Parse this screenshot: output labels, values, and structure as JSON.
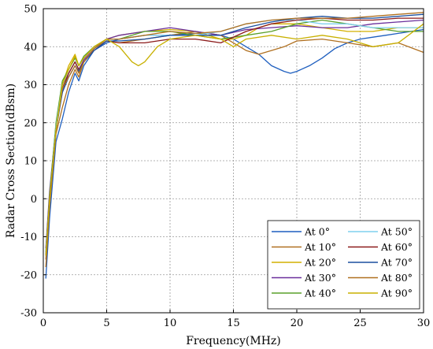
{
  "chart_data": {
    "type": "line",
    "title": "",
    "xlabel": "Frequency(MHz)",
    "ylabel": "Radar Cross Section(dBsm)",
    "xlim": [
      0,
      30
    ],
    "ylim": [
      -30,
      50
    ],
    "xticks": [
      0,
      5,
      10,
      15,
      20,
      25,
      30
    ],
    "yticks": [
      -30,
      -20,
      -10,
      0,
      10,
      20,
      30,
      40,
      50
    ],
    "grid": true,
    "legend_position": "bottom-right",
    "legend_columns": 2,
    "series": [
      {
        "name": "At 0°",
        "color": "#1f5fbf",
        "x": [
          0.2,
          0.5,
          1.0,
          1.5,
          2.0,
          2.5,
          2.8,
          3.2,
          4.0,
          5.0,
          6.0,
          8.0,
          10.0,
          12.0,
          13.0,
          14.0,
          15.0,
          16.0,
          17.0,
          18.0,
          19.0,
          19.5,
          20.0,
          21.0,
          22.0,
          23.0,
          24.0,
          25.0,
          26.0,
          27.0,
          28.0,
          29.0,
          30.0
        ],
        "y": [
          -21,
          -5,
          15,
          21,
          28,
          33,
          31,
          35,
          39,
          41,
          42,
          43,
          43,
          43.5,
          43.5,
          43,
          42,
          40,
          38,
          35,
          33.5,
          33,
          33.5,
          35,
          37,
          39.5,
          41,
          42,
          42.5,
          43,
          43.5,
          44,
          44.5
        ]
      },
      {
        "name": "At 10°",
        "color": "#b07020",
        "x": [
          0.2,
          0.5,
          1.0,
          1.5,
          2.0,
          2.5,
          2.8,
          3.2,
          4.0,
          5.0,
          6.0,
          8.0,
          10.0,
          12.0,
          14.0,
          15.0,
          16.0,
          17.0,
          18.0,
          19.0,
          20.0,
          22.0,
          24.0,
          26.0,
          28.0,
          30.0
        ],
        "y": [
          -18,
          -2,
          17,
          24,
          30,
          34,
          32,
          36,
          39.5,
          41.5,
          41,
          42,
          43,
          44,
          43,
          41,
          39,
          38,
          39,
          40,
          41.5,
          42,
          41,
          40,
          41,
          38.5
        ]
      },
      {
        "name": "At 20°",
        "color": "#d4b000",
        "x": [
          0.2,
          0.5,
          1.0,
          1.5,
          2.0,
          2.5,
          2.8,
          3.2,
          4.0,
          5.0,
          6.0,
          8.0,
          10.0,
          12.0,
          14.0,
          15.0,
          16.0,
          17.0,
          18.0,
          20.0,
          22.0,
          24.0,
          26.0,
          28.0,
          30.0
        ],
        "y": [
          -14,
          1,
          19,
          30,
          35,
          38,
          35,
          37,
          40,
          42,
          43,
          44,
          44.5,
          44,
          42,
          42,
          43,
          45,
          46,
          46,
          45,
          44,
          44,
          45,
          45
        ]
      },
      {
        "name": "At 30°",
        "color": "#6a2f9c",
        "x": [
          0.2,
          0.5,
          1.0,
          1.5,
          2.0,
          2.5,
          2.8,
          3.2,
          4.0,
          5.0,
          6.0,
          8.0,
          10.0,
          12.0,
          14.0,
          16.0,
          18.0,
          20.0,
          22.0,
          24.0,
          26.0,
          28.0,
          30.0
        ],
        "y": [
          -13,
          2,
          19,
          28,
          33,
          36,
          34,
          36.5,
          39.5,
          42,
          43,
          44,
          45,
          44,
          43,
          44.5,
          45,
          45.5,
          45,
          45,
          46,
          46.5,
          47
        ]
      },
      {
        "name": "At 40°",
        "color": "#5aa02a",
        "x": [
          0.2,
          0.5,
          1.0,
          1.5,
          2.0,
          2.5,
          2.8,
          3.2,
          4.0,
          5.0,
          6.0,
          8.0,
          10.0,
          12.0,
          14.0,
          16.0,
          18.0,
          20.0,
          22.0,
          24.0,
          26.0,
          28.0,
          30.0
        ],
        "y": [
          -14,
          1,
          20,
          31,
          34,
          37,
          35,
          37.5,
          40,
          42,
          42,
          44,
          44,
          43,
          42,
          43,
          44,
          46,
          47,
          46,
          45,
          44,
          44
        ]
      },
      {
        "name": "At 50°",
        "color": "#7fd0ee",
        "x": [
          0.2,
          0.5,
          1.0,
          1.5,
          2.0,
          2.5,
          2.8,
          3.2,
          4.0,
          5.0,
          6.0,
          8.0,
          10.0,
          12.0,
          14.0,
          16.0,
          18.0,
          20.0,
          22.0,
          24.0,
          26.0,
          28.0,
          30.0
        ],
        "y": [
          -14,
          0,
          19,
          30,
          33,
          36,
          34,
          36,
          39.5,
          42,
          42,
          43,
          43,
          43,
          44,
          46,
          47,
          47,
          46,
          46,
          45,
          45,
          45
        ]
      },
      {
        "name": "At 60°",
        "color": "#8b1a1a",
        "x": [
          0.2,
          0.5,
          1.0,
          1.5,
          2.0,
          2.5,
          2.8,
          3.2,
          4.0,
          5.0,
          6.0,
          8.0,
          10.0,
          12.0,
          14.0,
          16.0,
          18.0,
          20.0,
          22.0,
          24.0,
          26.0,
          28.0,
          30.0
        ],
        "y": [
          -15,
          0,
          18,
          29,
          33,
          36,
          34,
          36,
          39,
          41.5,
          41,
          41,
          42,
          42,
          41,
          44,
          46,
          47,
          47.5,
          47,
          47,
          47.5,
          47.5
        ]
      },
      {
        "name": "At 70°",
        "color": "#1a4f9f",
        "x": [
          0.2,
          0.5,
          1.0,
          1.5,
          2.0,
          2.5,
          2.8,
          3.2,
          4.0,
          5.0,
          6.0,
          8.0,
          10.0,
          12.0,
          14.0,
          16.0,
          18.0,
          20.0,
          22.0,
          24.0,
          26.0,
          28.0,
          30.0
        ],
        "y": [
          -15,
          0,
          18,
          28,
          32,
          35,
          33.5,
          36,
          39,
          41.5,
          41.5,
          42,
          43,
          43,
          43,
          45,
          46.5,
          47.5,
          48,
          47.5,
          47.5,
          48,
          48.5
        ]
      },
      {
        "name": "At 80°",
        "color": "#b07020",
        "x": [
          0.2,
          0.5,
          1.0,
          1.5,
          2.0,
          2.5,
          2.8,
          3.2,
          4.0,
          5.0,
          6.0,
          8.0,
          10.0,
          12.0,
          14.0,
          16.0,
          18.0,
          20.0,
          22.0,
          24.0,
          26.0,
          28.0,
          30.0
        ],
        "y": [
          -16,
          -1,
          18,
          29,
          32,
          35,
          33,
          36,
          39.5,
          42,
          42,
          43,
          44,
          43.5,
          44,
          46,
          47,
          47.5,
          47.5,
          47.5,
          48,
          48.5,
          49
        ]
      },
      {
        "name": "At 90°",
        "color": "#c8b000",
        "x": [
          0.2,
          0.5,
          1.0,
          1.5,
          2.0,
          2.5,
          2.8,
          3.2,
          4.0,
          5.0,
          6.0,
          7.0,
          7.5,
          8.0,
          9.0,
          10.0,
          12.0,
          14.0,
          15.0,
          16.0,
          18.0,
          20.0,
          22.0,
          24.0,
          26.0,
          28.0,
          30.0
        ],
        "y": [
          -15,
          0,
          18,
          30,
          34,
          37.5,
          35,
          37,
          40,
          42,
          40,
          36,
          35,
          36,
          40,
          42,
          43,
          42,
          40,
          42,
          43,
          42,
          43,
          42,
          40,
          41,
          46
        ]
      }
    ]
  }
}
